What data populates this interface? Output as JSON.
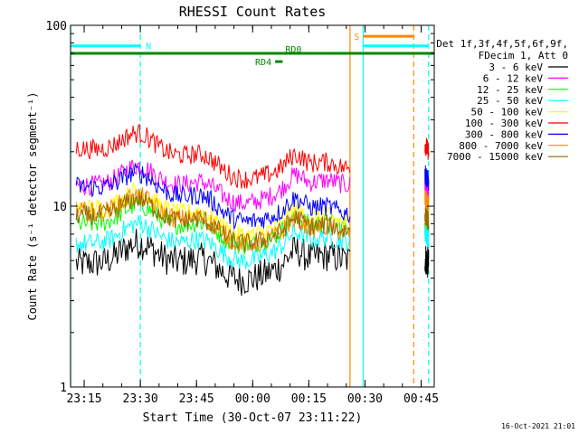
{
  "chart_data": {
    "type": "line",
    "title": "RHESSI Count Rates",
    "xlabel": "Start Time (30-Oct-07 23:11:22)",
    "ylabel": "Count Rate (s⁻¹ detector segment⁻¹)",
    "yscale": "log",
    "ylim": [
      1,
      100
    ],
    "xlim": [
      "23:11:22",
      "00:48:30"
    ],
    "x_tick_labels": [
      "23:15",
      "23:30",
      "23:45",
      "00:00",
      "00:15",
      "00:30",
      "00:45"
    ],
    "y_tick_labels": [
      "1",
      "10",
      "100"
    ],
    "legend_header": [
      "Det 1f,3f,4f,5f,6f,9f,",
      "FDecim 1, Att 0"
    ],
    "series": [
      {
        "name": "3 - 6 keV",
        "color": "#000000",
        "start": 4.8,
        "end": 5.0,
        "gap_resume": 5.2
      },
      {
        "name": "6 - 12 keV",
        "color": "#ff00ff",
        "start": 13.0,
        "end": 13.0,
        "gap_resume": 12.8
      },
      {
        "name": "12 - 25 keV",
        "color": "#00ff00",
        "start": 8.0,
        "end": 7.5,
        "gap_resume": 7.5
      },
      {
        "name": "25 - 50 keV",
        "color": "#00ffff",
        "start": 6.2,
        "end": 6.3,
        "gap_resume": 7.2
      },
      {
        "name": "50 - 100 keV",
        "color": "#ffff00",
        "start": 9.8,
        "end": 8.0,
        "gap_resume": 9.5
      },
      {
        "name": "100 - 300 keV",
        "color": "#ff0000",
        "start": 21.0,
        "end": 16.0,
        "gap_resume": 22.0
      },
      {
        "name": "300 - 800 keV",
        "color": "#0000ff",
        "start": 13.0,
        "end": 9.0,
        "gap_resume": 15.0
      },
      {
        "name": "800 - 7000 keV",
        "color": "#ff8800",
        "start": 9.5,
        "end": 7.0,
        "gap_resume": 11.0
      },
      {
        "name": "7000 - 15000 keV",
        "color": "#996600",
        "start": 9.0,
        "end": 7.2,
        "gap_resume": 9.0
      }
    ],
    "data_gap": [
      "00:26:00",
      "00:46:00"
    ],
    "annotations": [
      {
        "label": "N",
        "color": "#00ffff",
        "start": "23:11:22",
        "end": "23:30:00",
        "value": 77
      },
      {
        "label": "",
        "color": "#00ffff",
        "start": "00:29:30",
        "end": "00:47:00",
        "value": 77
      },
      {
        "label": "S",
        "color": "#ff8800",
        "start": "00:29:30",
        "end": "00:43:00",
        "value": 87
      },
      {
        "label": "RD0",
        "color": "#008800",
        "start": "23:11:22",
        "end": "00:48:30",
        "value": 70
      },
      {
        "label": "RD4",
        "color": "#008800",
        "start": "00:06:00",
        "end": "00:08:00",
        "value": 63
      }
    ],
    "vertical_markers": [
      {
        "time": "23:11:22",
        "color": "#00ffff",
        "style": "solid"
      },
      {
        "time": "23:30:00",
        "color": "#00ffff",
        "style": "dashed"
      },
      {
        "time": "00:26:00",
        "color": "#ff8800",
        "style": "solid"
      },
      {
        "time": "00:29:30",
        "color": "#00ffff",
        "style": "solid"
      },
      {
        "time": "00:43:00",
        "color": "#ff8800",
        "style": "dashed"
      },
      {
        "time": "00:47:00",
        "color": "#00ffff",
        "style": "dashed"
      }
    ],
    "grid": false,
    "legend_position": "right"
  },
  "footer": {
    "timestamp": "16-Oct-2021 21:01"
  }
}
